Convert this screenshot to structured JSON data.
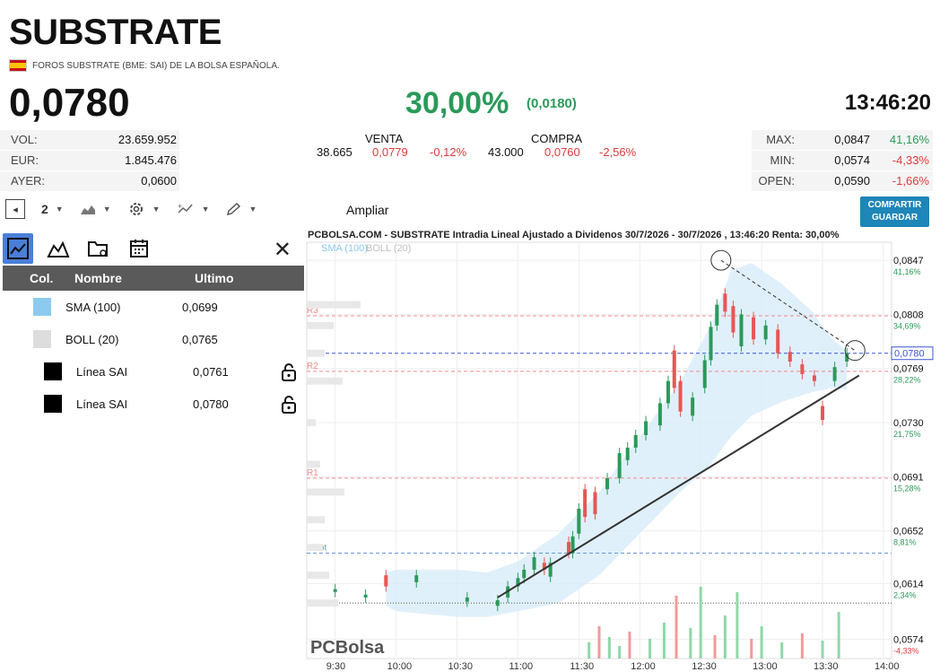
{
  "header": {
    "title": "SUBSTRATE",
    "subtitle": "FOROS SUBSTRATE (BME: SAI) DE LA BOLSA ESPAÑOLA.",
    "price": "0,0780",
    "change_pct": "30,00%",
    "change_abs": "(0,0180)",
    "time": "13:46:20"
  },
  "stats_left": [
    {
      "label": "VOL:",
      "value": "23.659.952"
    },
    {
      "label": "EUR:",
      "value": "1.845.476"
    },
    {
      "label": "AYER:",
      "value": "0,0600"
    }
  ],
  "order_book": {
    "venta_label": "VENTA",
    "compra_label": "COMPRA",
    "venta_qty": "38.665",
    "venta_price": "0,0779",
    "venta_pct": "-0,12%",
    "compra_qty": "43.000",
    "compra_price": "0,0760",
    "compra_pct": "-2,56%"
  },
  "stats_right": [
    {
      "label": "MAX:",
      "value": "0,0847",
      "pct": "41,16%"
    },
    {
      "label": "MIN:",
      "value": "0,0574",
      "pct": "-4,33%"
    },
    {
      "label": "OPEN:",
      "value": "0,0590",
      "pct": "-1,66%"
    }
  ],
  "toolbar": {
    "count": "2",
    "ampliar": "Ampliar",
    "share_line1": "COMPARTIR",
    "share_line2": "GUARDAR"
  },
  "panel": {
    "col_header": "Col.",
    "name_header": "Nombre",
    "last_header": "Ultimo",
    "rows": [
      {
        "name": "SMA (100)",
        "last": "0,0699",
        "color": "#8ccaf0"
      },
      {
        "name": "BOLL (20)",
        "last": "0,0765",
        "color": "#dddddd"
      },
      {
        "name": "Línea SAI",
        "last": "0,0761",
        "color": "#000000"
      },
      {
        "name": "Línea SAI",
        "last": "0,0780",
        "color": "#000000"
      }
    ]
  },
  "chart_data": {
    "type": "candlestick",
    "title": "PCBOLSA.COM - SUBSTRATE Intradia Lineal Ajustado a Dividenos 30/7/2026 - 30/7/2026 , 13:46:20 Renta: 30,00%",
    "legend": [
      "SMA (100)",
      "BOLL (20)"
    ],
    "watermark": "PCBolsa",
    "x_ticks": [
      "9:30",
      "10:00",
      "10:30",
      "11:00",
      "11:30",
      "12:00",
      "12:30",
      "13:00",
      "13:30",
      "14:00"
    ],
    "y_ticks": [
      {
        "value": 0.0847,
        "label": "0,0847",
        "pct": "41,16%"
      },
      {
        "value": 0.0808,
        "label": "0,0808",
        "pct": "34,69%"
      },
      {
        "value": 0.0769,
        "label": "0,0769",
        "pct": "28,22%"
      },
      {
        "value": 0.073,
        "label": "0,0730",
        "pct": "21,75%"
      },
      {
        "value": 0.0691,
        "label": "0,0691",
        "pct": "15,28%"
      },
      {
        "value": 0.0652,
        "label": "0,0652",
        "pct": "8,81%"
      },
      {
        "value": 0.0614,
        "label": "0,0614",
        "pct": "2,34%"
      },
      {
        "value": 0.0574,
        "label": "0,0574",
        "pct": "-4,33%"
      }
    ],
    "current_price": {
      "value": 0.078,
      "label": "0,0780"
    },
    "ylim": [
      0.056,
      0.086
    ],
    "pivots": [
      {
        "name": "R3",
        "value": 0.0807
      },
      {
        "name": "R2",
        "value": 0.0767
      },
      {
        "name": "R1",
        "value": 0.069
      },
      {
        "name": "Pivot",
        "value": 0.0636
      }
    ],
    "ayer_value": 0.06
  }
}
